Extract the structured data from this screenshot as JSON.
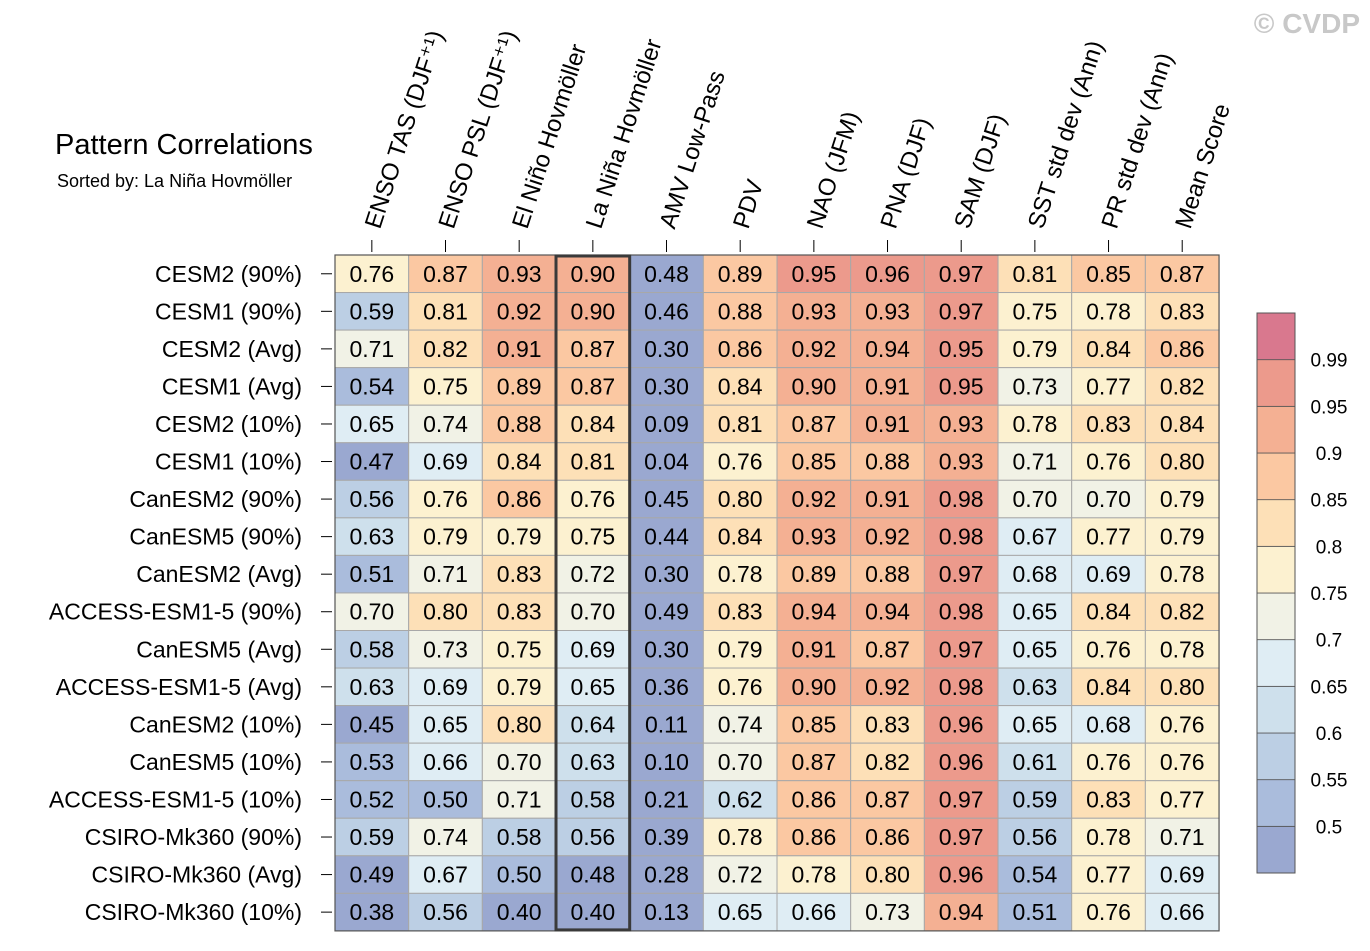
{
  "watermark": "© CVDP",
  "chart_data": {
    "type": "heatmap",
    "title": "Pattern Correlations",
    "subtitle": "Sorted by: La Niña Hovmöller",
    "highlight_column": "La Niña Hovmöller",
    "columns": [
      "ENSO TAS (DJF⁺¹)",
      "ENSO PSL (DJF⁺¹)",
      "El Niño Hovmöller",
      "La Niña Hovmöller",
      "AMV Low-Pass",
      "PDV",
      "NAO (JFM)",
      "PNA (DJF)",
      "SAM (DJF)",
      "SST std dev (Ann)",
      "PR std dev (Ann)",
      "Mean Score"
    ],
    "rows": [
      "CESM2 (90%)",
      "CESM1 (90%)",
      "CESM2 (Avg)",
      "CESM1 (Avg)",
      "CESM2 (10%)",
      "CESM1 (10%)",
      "CanESM2 (90%)",
      "CanESM5 (90%)",
      "CanESM2 (Avg)",
      "ACCESS-ESM1-5 (90%)",
      "CanESM5 (Avg)",
      "ACCESS-ESM1-5 (Avg)",
      "CanESM2 (10%)",
      "CanESM5 (10%)",
      "ACCESS-ESM1-5 (10%)",
      "CSIRO-Mk360 (90%)",
      "CSIRO-Mk360 (Avg)",
      "CSIRO-Mk360 (10%)"
    ],
    "values": [
      [
        "0.76",
        "0.87",
        "0.93",
        "0.90",
        "0.48",
        "0.89",
        "0.95",
        "0.96",
        "0.97",
        "0.81",
        "0.85",
        "0.87"
      ],
      [
        "0.59",
        "0.81",
        "0.92",
        "0.90",
        "0.46",
        "0.88",
        "0.93",
        "0.93",
        "0.97",
        "0.75",
        "0.78",
        "0.83"
      ],
      [
        "0.71",
        "0.82",
        "0.91",
        "0.87",
        "0.30",
        "0.86",
        "0.92",
        "0.94",
        "0.95",
        "0.79",
        "0.84",
        "0.86"
      ],
      [
        "0.54",
        "0.75",
        "0.89",
        "0.87",
        "0.30",
        "0.84",
        "0.90",
        "0.91",
        "0.95",
        "0.73",
        "0.77",
        "0.82"
      ],
      [
        "0.65",
        "0.74",
        "0.88",
        "0.84",
        "0.09",
        "0.81",
        "0.87",
        "0.91",
        "0.93",
        "0.78",
        "0.83",
        "0.84"
      ],
      [
        "0.47",
        "0.69",
        "0.84",
        "0.81",
        "0.04",
        "0.76",
        "0.85",
        "0.88",
        "0.93",
        "0.71",
        "0.76",
        "0.80"
      ],
      [
        "0.56",
        "0.76",
        "0.86",
        "0.76",
        "0.45",
        "0.80",
        "0.92",
        "0.91",
        "0.98",
        "0.70",
        "0.70",
        "0.79"
      ],
      [
        "0.63",
        "0.79",
        "0.79",
        "0.75",
        "0.44",
        "0.84",
        "0.93",
        "0.92",
        "0.98",
        "0.67",
        "0.77",
        "0.79"
      ],
      [
        "0.51",
        "0.71",
        "0.83",
        "0.72",
        "0.30",
        "0.78",
        "0.89",
        "0.88",
        "0.97",
        "0.68",
        "0.69",
        "0.78"
      ],
      [
        "0.70",
        "0.80",
        "0.83",
        "0.70",
        "0.49",
        "0.83",
        "0.94",
        "0.94",
        "0.98",
        "0.65",
        "0.84",
        "0.82"
      ],
      [
        "0.58",
        "0.73",
        "0.75",
        "0.69",
        "0.30",
        "0.79",
        "0.91",
        "0.87",
        "0.97",
        "0.65",
        "0.76",
        "0.78"
      ],
      [
        "0.63",
        "0.69",
        "0.79",
        "0.65",
        "0.36",
        "0.76",
        "0.90",
        "0.92",
        "0.98",
        "0.63",
        "0.84",
        "0.80"
      ],
      [
        "0.45",
        "0.65",
        "0.80",
        "0.64",
        "0.11",
        "0.74",
        "0.85",
        "0.83",
        "0.96",
        "0.65",
        "0.68",
        "0.76"
      ],
      [
        "0.53",
        "0.66",
        "0.70",
        "0.63",
        "0.10",
        "0.70",
        "0.87",
        "0.82",
        "0.96",
        "0.61",
        "0.76",
        "0.76"
      ],
      [
        "0.52",
        "0.50",
        "0.71",
        "0.58",
        "0.21",
        "0.62",
        "0.86",
        "0.87",
        "0.97",
        "0.59",
        "0.83",
        "0.77"
      ],
      [
        "0.59",
        "0.74",
        "0.58",
        "0.56",
        "0.39",
        "0.78",
        "0.86",
        "0.86",
        "0.97",
        "0.56",
        "0.78",
        "0.71"
      ],
      [
        "0.49",
        "0.67",
        "0.50",
        "0.48",
        "0.28",
        "0.72",
        "0.78",
        "0.80",
        "0.96",
        "0.54",
        "0.77",
        "0.69"
      ],
      [
        "0.38",
        "0.56",
        "0.40",
        "0.40",
        "0.13",
        "0.65",
        "0.66",
        "0.73",
        "0.94",
        "0.51",
        "0.76",
        "0.66"
      ]
    ],
    "colorbar": {
      "levels": [
        0.5,
        0.55,
        0.6,
        0.65,
        0.7,
        0.75,
        0.8,
        0.85,
        0.9,
        0.95,
        0.99
      ],
      "tick_labels": [
        "0.5",
        "0.55",
        "0.6",
        "0.65",
        "0.7",
        "0.75",
        "0.8",
        "0.85",
        "0.9",
        "0.95",
        "0.99"
      ],
      "colors": [
        "#9aa8d0",
        "#aabcdc",
        "#bccfe4",
        "#cee0ec",
        "#dfedf4",
        "#f1f2e6",
        "#fcf1d0",
        "#fde0b7",
        "#fbc8a2",
        "#f4b093",
        "#ec9a8c",
        "#d9788e"
      ]
    }
  }
}
